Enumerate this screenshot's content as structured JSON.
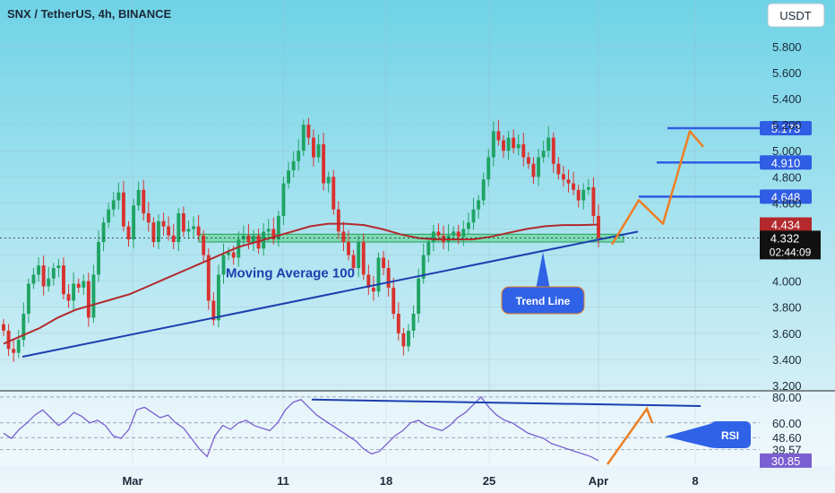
{
  "title": "SNX / TetherUS, 4h, BINANCE",
  "currency_button": "USDT",
  "colors": {
    "bg_top": "#6fd3e6",
    "bg_bottom": "#eef6fb",
    "bull": "#1fa463",
    "bear": "#d8322f",
    "ma": "#b3292c",
    "trend": "#1c3fae",
    "level": "#2f5de3",
    "arrow": "#ee7f22",
    "rsi": "#7a5fd0",
    "support_zone": "#5bd58c"
  },
  "chart_data": [
    {
      "type": "candlestick",
      "title": "SNX / TetherUS, 4h, BINANCE",
      "x_ticks": [
        "Mar",
        "11",
        "18",
        "25",
        "Apr",
        "8"
      ],
      "y_ticks": [
        "5.800",
        "5.600",
        "5.400",
        "5.200",
        "5.000",
        "4.800",
        "4.600",
        "4.400",
        "4.200",
        "4.000",
        "3.800",
        "3.600",
        "3.400",
        "3.200"
      ],
      "ylim": [
        3.2,
        5.95
      ],
      "last_price": "4.332",
      "countdown": "02:44:09",
      "ma_value": "4.434",
      "levels": [
        "5.173",
        "4.910",
        "4.648"
      ],
      "annotations": [
        "Moving Average 100",
        "Trend Line"
      ],
      "grid": true,
      "price_path": [
        3.62,
        3.48,
        3.45,
        3.55,
        3.75,
        3.98,
        4.05,
        4.12,
        3.96,
        4.02,
        4.1,
        4.12,
        3.9,
        3.85,
        3.98,
        3.95,
        4.0,
        3.72,
        4.05,
        4.3,
        4.45,
        4.55,
        4.62,
        4.68,
        4.42,
        4.32,
        4.58,
        4.7,
        4.52,
        4.45,
        4.3,
        4.46,
        4.42,
        4.35,
        4.3,
        4.52,
        4.38,
        4.4,
        4.42,
        4.35,
        4.2,
        3.85,
        3.7,
        4.05,
        4.2,
        4.22,
        4.18,
        4.32,
        4.35,
        4.3,
        4.35,
        4.25,
        4.38,
        4.4,
        4.32,
        4.5,
        4.75,
        4.85,
        4.92,
        5.0,
        5.2,
        5.1,
        4.95,
        5.05,
        4.75,
        4.8,
        4.55,
        4.38,
        4.3,
        4.2,
        4.1,
        4.3,
        4.05,
        3.95,
        3.92,
        4.18,
        4.1,
        3.95,
        3.75,
        3.6,
        3.5,
        3.62,
        3.75,
        4.02,
        4.2,
        4.3,
        4.38,
        4.35,
        4.3,
        4.35,
        4.38,
        4.34,
        4.4,
        4.45,
        4.55,
        4.62,
        4.78,
        4.95,
        5.15,
        5.08,
        5.0,
        5.1,
        5.02,
        5.05,
        4.95,
        4.9,
        4.8,
        4.95,
        5.0,
        5.1,
        4.9,
        4.82,
        4.78,
        4.75,
        4.7,
        4.62,
        4.7,
        4.72,
        4.5,
        4.33
      ],
      "ma_path": [
        3.52,
        3.58,
        3.64,
        3.72,
        3.78,
        3.82,
        3.86,
        3.9,
        3.96,
        4.02,
        4.08,
        4.14,
        4.2,
        4.26,
        4.3,
        4.34,
        4.38,
        4.42,
        4.44,
        4.44,
        4.43,
        4.4,
        4.36,
        4.33,
        4.32,
        4.32,
        4.32,
        4.34,
        4.37,
        4.4,
        4.42,
        4.43,
        4.43,
        4.434
      ]
    },
    {
      "type": "line",
      "title": "RSI",
      "y_ticks": [
        "80.00",
        "60.00",
        "48.60",
        "39.57"
      ],
      "ylim": [
        28,
        82
      ],
      "last_value": "30.85",
      "values": [
        52,
        48,
        55,
        60,
        66,
        70,
        64,
        58,
        62,
        68,
        65,
        60,
        62,
        58,
        50,
        48,
        55,
        70,
        72,
        68,
        64,
        66,
        60,
        56,
        48,
        40,
        34,
        50,
        58,
        55,
        60,
        62,
        58,
        56,
        54,
        60,
        70,
        76,
        78,
        72,
        66,
        62,
        58,
        54,
        50,
        46,
        40,
        36,
        38,
        44,
        50,
        54,
        60,
        62,
        58,
        56,
        54,
        58,
        64,
        68,
        74,
        80,
        72,
        66,
        62,
        60,
        56,
        52,
        50,
        48,
        44,
        42,
        40,
        38,
        36,
        34,
        30.85
      ]
    }
  ]
}
